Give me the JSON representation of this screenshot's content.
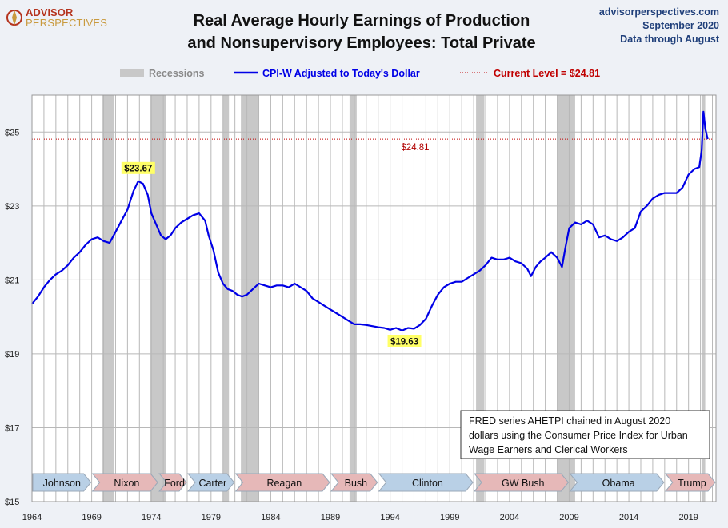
{
  "header": {
    "logo_line1": "ADVISOR",
    "logo_line2": "PERSPECTIVES",
    "title_line1": "Real Average Hourly Earnings of Production",
    "title_line2": "and Nonsupervisory Employees: Total Private",
    "site": "advisorperspectives.com",
    "date": "September 2020",
    "through": "Data through August"
  },
  "legend": {
    "recessions": "Recessions",
    "series": "CPI-W Adjusted to Today's Dollar",
    "current": "Current Level = $24.81"
  },
  "note": {
    "line1": "FRED series AHETPI chained in August 2020",
    "line2": "dollars using the Consumer Price Index for Urban",
    "line3": "Wage Earners and Clerical Workers"
  },
  "colors": {
    "line": "#0000e6",
    "recession": "#c8c8c8",
    "current": "#c00000",
    "plot_bg": "#ffffff",
    "page_bg": "#eef1f6",
    "callout_bg": "#ffff66",
    "dem": "#b9d0e6",
    "rep": "#e6b8b8"
  },
  "chart_data": {
    "type": "line",
    "title": "Real Average Hourly Earnings of Production and Nonsupervisory Employees: Total Private",
    "ylim": [
      15,
      26
    ],
    "xlim": [
      1964,
      2021.3
    ],
    "y_ticks": [
      15,
      17,
      19,
      21,
      23,
      25
    ],
    "y_tick_labels": [
      "$15",
      "$17",
      "$19",
      "$21",
      "$23",
      "$25"
    ],
    "x_ticks": [
      1964,
      1969,
      1974,
      1979,
      1984,
      1989,
      1994,
      1999,
      2004,
      2009,
      2014,
      2019
    ],
    "x_tick_labels": [
      "1964",
      "1969",
      "1974",
      "1979",
      "1984",
      "1989",
      "1994",
      "1999",
      "2004",
      "2009",
      "2014",
      "2019"
    ],
    "grid": "vertical lines each year, horizontal at y ticks",
    "current_level": 24.81,
    "current_label": "$24.81",
    "annotations": [
      {
        "label": "$23.67",
        "x": 1972.9,
        "y": 23.67
      },
      {
        "label": "$19.63",
        "x": 1995.2,
        "y": 19.63
      }
    ],
    "recessions": [
      [
        1969.9,
        1970.9
      ],
      [
        1973.9,
        1975.2
      ],
      [
        1980.0,
        1980.5
      ],
      [
        1981.5,
        1982.9
      ],
      [
        1990.6,
        1991.2
      ],
      [
        2001.2,
        2001.9
      ],
      [
        2008.0,
        2009.5
      ],
      [
        2020.1,
        2020.4
      ]
    ],
    "presidents": [
      {
        "name": "Johnson",
        "start": 1964.0,
        "end": 1969.0,
        "party": "D"
      },
      {
        "name": "Nixon",
        "start": 1969.0,
        "end": 1974.6,
        "party": "R"
      },
      {
        "name": "Ford",
        "start": 1974.6,
        "end": 1977.0,
        "party": "R"
      },
      {
        "name": "Carter",
        "start": 1977.0,
        "end": 1981.0,
        "party": "D"
      },
      {
        "name": "Reagan",
        "start": 1981.0,
        "end": 1989.0,
        "party": "R"
      },
      {
        "name": "Bush",
        "start": 1989.0,
        "end": 1993.0,
        "party": "R"
      },
      {
        "name": "Clinton",
        "start": 1993.0,
        "end": 2001.0,
        "party": "D"
      },
      {
        "name": "GW Bush",
        "start": 2001.0,
        "end": 2009.0,
        "party": "R"
      },
      {
        "name": "Obama",
        "start": 2009.0,
        "end": 2017.0,
        "party": "D"
      },
      {
        "name": "Trump",
        "start": 2017.0,
        "end": 2021.3,
        "party": "R"
      }
    ],
    "series": [
      {
        "name": "CPI-W Adjusted to Today's Dollar",
        "x": [
          1964.0,
          1964.5,
          1965.0,
          1965.5,
          1966.0,
          1966.5,
          1967.0,
          1967.5,
          1968.0,
          1968.5,
          1969.0,
          1969.5,
          1970.0,
          1970.5,
          1971.0,
          1971.5,
          1972.0,
          1972.5,
          1972.9,
          1973.3,
          1973.7,
          1974.0,
          1974.4,
          1974.8,
          1975.2,
          1975.6,
          1976.0,
          1976.5,
          1977.0,
          1977.5,
          1978.0,
          1978.5,
          1978.8,
          1979.2,
          1979.6,
          1980.0,
          1980.4,
          1980.8,
          1981.2,
          1981.6,
          1982.0,
          1982.5,
          1983.0,
          1983.5,
          1984.0,
          1984.5,
          1985.0,
          1985.5,
          1986.0,
          1986.5,
          1987.0,
          1987.5,
          1988.0,
          1988.5,
          1989.0,
          1989.5,
          1990.0,
          1990.5,
          1991.0,
          1991.5,
          1992.0,
          1992.5,
          1993.0,
          1993.5,
          1994.0,
          1994.5,
          1995.0,
          1995.5,
          1996.0,
          1996.5,
          1997.0,
          1997.5,
          1998.0,
          1998.5,
          1999.0,
          1999.5,
          2000.0,
          2000.5,
          2001.0,
          2001.5,
          2002.0,
          2002.5,
          2003.0,
          2003.5,
          2004.0,
          2004.5,
          2005.0,
          2005.5,
          2005.8,
          2006.2,
          2006.6,
          2007.0,
          2007.5,
          2008.0,
          2008.4,
          2008.7,
          2009.0,
          2009.5,
          2010.0,
          2010.5,
          2011.0,
          2011.5,
          2012.0,
          2012.5,
          2013.0,
          2013.5,
          2014.0,
          2014.5,
          2015.0,
          2015.5,
          2016.0,
          2016.5,
          2017.0,
          2017.5,
          2018.0,
          2018.5,
          2019.0,
          2019.5,
          2019.9,
          2020.1,
          2020.25,
          2020.4,
          2020.6
        ],
        "values": [
          20.35,
          20.55,
          20.8,
          21.0,
          21.15,
          21.25,
          21.4,
          21.6,
          21.75,
          21.95,
          22.1,
          22.15,
          22.05,
          22.0,
          22.3,
          22.6,
          22.9,
          23.4,
          23.67,
          23.6,
          23.3,
          22.8,
          22.5,
          22.2,
          22.1,
          22.2,
          22.4,
          22.55,
          22.65,
          22.75,
          22.8,
          22.6,
          22.2,
          21.8,
          21.2,
          20.9,
          20.75,
          20.7,
          20.6,
          20.55,
          20.6,
          20.75,
          20.9,
          20.85,
          20.8,
          20.85,
          20.85,
          20.8,
          20.9,
          20.8,
          20.7,
          20.5,
          20.4,
          20.3,
          20.2,
          20.1,
          20.0,
          19.9,
          19.8,
          19.8,
          19.78,
          19.75,
          19.72,
          19.7,
          19.65,
          19.7,
          19.63,
          19.7,
          19.68,
          19.78,
          19.95,
          20.3,
          20.6,
          20.8,
          20.9,
          20.95,
          20.95,
          21.05,
          21.15,
          21.25,
          21.4,
          21.6,
          21.55,
          21.55,
          21.6,
          21.5,
          21.45,
          21.3,
          21.1,
          21.35,
          21.5,
          21.6,
          21.75,
          21.6,
          21.35,
          21.9,
          22.4,
          22.55,
          22.5,
          22.6,
          22.5,
          22.15,
          22.2,
          22.1,
          22.05,
          22.15,
          22.3,
          22.4,
          22.85,
          23.0,
          23.2,
          23.3,
          23.35,
          23.35,
          23.35,
          23.5,
          23.85,
          24.0,
          24.05,
          24.5,
          25.55,
          25.1,
          24.81
        ]
      }
    ]
  }
}
